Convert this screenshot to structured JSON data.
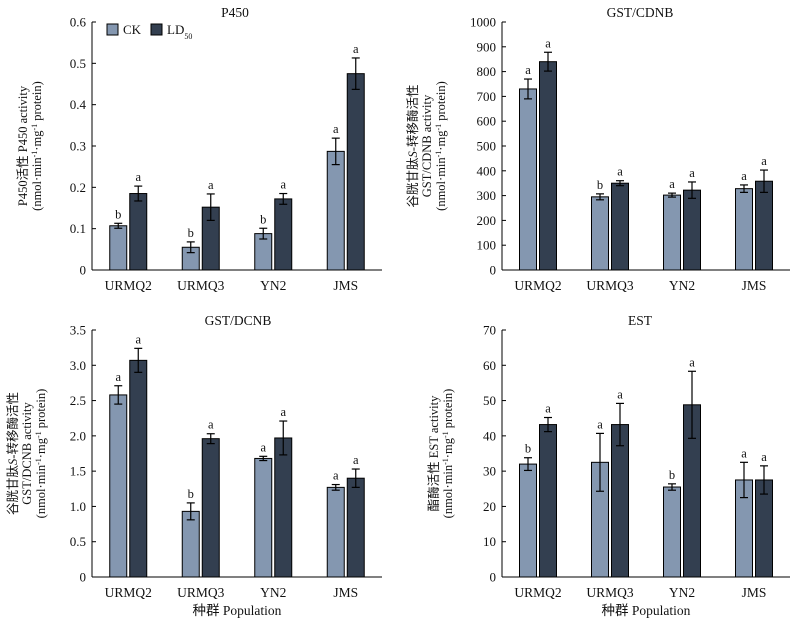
{
  "colors": {
    "ck": "#8497b0",
    "ld50": "#333f50"
  },
  "legend": {
    "ck": "CK",
    "ld_main": "LD",
    "ld_sub": "50"
  },
  "shared_xlabel": "种群 Population",
  "chart_data": [
    {
      "type": "bar",
      "title": "P450",
      "ylabel_lines": [
        [
          {
            "t": "P450活性 P450 activity"
          }
        ],
        [
          {
            "t": "(nmol·min"
          },
          {
            "t": "-1",
            "sup": true
          },
          {
            "t": "·mg"
          },
          {
            "t": "-1",
            "sup": true
          },
          {
            "t": " protein)"
          }
        ]
      ],
      "ylim": [
        0,
        0.6
      ],
      "yticks": [
        0,
        0.1,
        0.2,
        0.3,
        0.4,
        0.5,
        0.6
      ],
      "yticklabels": [
        "0",
        "0.1",
        "0.2",
        "0.3",
        "0.4",
        "0.5",
        "0.6"
      ],
      "categories": [
        "URMQ2",
        "URMQ3",
        "YN2",
        "JMS"
      ],
      "series": [
        {
          "name": "CK",
          "values": [
            0.107,
            0.055,
            0.088,
            0.287
          ],
          "errors": [
            0.006,
            0.013,
            0.013,
            0.032
          ],
          "letters": [
            "b",
            "b",
            "b",
            "a"
          ]
        },
        {
          "name": "LD50",
          "values": [
            0.185,
            0.152,
            0.172,
            0.475
          ],
          "errors": [
            0.018,
            0.032,
            0.013,
            0.038
          ],
          "letters": [
            "a",
            "a",
            "a",
            "a"
          ]
        }
      ],
      "show_legend": true,
      "show_xlabel": false
    },
    {
      "type": "bar",
      "title": "GST/CDNB",
      "ylabel_lines": [
        [
          {
            "t": "谷胱甘肽"
          },
          {
            "t": "S",
            "it": true
          },
          {
            "t": "-转移酶活性"
          }
        ],
        [
          {
            "t": "GST/CDNB activity"
          }
        ],
        [
          {
            "t": "(nmol·min"
          },
          {
            "t": "-1",
            "sup": true
          },
          {
            "t": "·mg"
          },
          {
            "t": "-1",
            "sup": true
          },
          {
            "t": " protein)"
          }
        ]
      ],
      "ylim": [
        0,
        1000
      ],
      "yticks": [
        0,
        100,
        200,
        300,
        400,
        500,
        600,
        700,
        800,
        900,
        1000
      ],
      "yticklabels": [
        "0",
        "100",
        "200",
        "300",
        "400",
        "500",
        "600",
        "700",
        "800",
        "900",
        "1000"
      ],
      "categories": [
        "URMQ2",
        "URMQ3",
        "YN2",
        "JMS"
      ],
      "series": [
        {
          "name": "CK",
          "values": [
            730,
            295,
            302,
            328
          ],
          "errors": [
            40,
            12,
            8,
            15
          ],
          "letters": [
            "a",
            "b",
            "a",
            "a"
          ]
        },
        {
          "name": "LD50",
          "values": [
            840,
            350,
            322,
            358
          ],
          "errors": [
            38,
            10,
            33,
            45
          ],
          "letters": [
            "a",
            "a",
            "a",
            "a"
          ]
        }
      ],
      "show_legend": false,
      "show_xlabel": false
    },
    {
      "type": "bar",
      "title": "GST/DCNB",
      "ylabel_lines": [
        [
          {
            "t": "谷胱甘肽"
          },
          {
            "t": "S",
            "it": true
          },
          {
            "t": "-转移酶活性"
          }
        ],
        [
          {
            "t": "GST/DCNB activity"
          }
        ],
        [
          {
            "t": "(nmol·min"
          },
          {
            "t": "-1",
            "sup": true
          },
          {
            "t": "·mg"
          },
          {
            "t": "-1",
            "sup": true
          },
          {
            "t": " protein)"
          }
        ]
      ],
      "ylim": [
        0,
        3.5
      ],
      "yticks": [
        0,
        0.5,
        1.0,
        1.5,
        2.0,
        2.5,
        3.0,
        3.5
      ],
      "yticklabels": [
        "0",
        "0.5",
        "1.0",
        "1.5",
        "2.0",
        "2.5",
        "3.0",
        "3.5"
      ],
      "categories": [
        "URMQ2",
        "URMQ3",
        "YN2",
        "JMS"
      ],
      "series": [
        {
          "name": "CK",
          "values": [
            2.58,
            0.93,
            1.68,
            1.27
          ],
          "errors": [
            0.13,
            0.12,
            0.03,
            0.04
          ],
          "letters": [
            "a",
            "b",
            "a",
            "a"
          ]
        },
        {
          "name": "LD50",
          "values": [
            3.07,
            1.96,
            1.97,
            1.4
          ],
          "errors": [
            0.17,
            0.07,
            0.24,
            0.13
          ],
          "letters": [
            "a",
            "a",
            "a",
            "a"
          ]
        }
      ],
      "show_legend": false,
      "show_xlabel": true
    },
    {
      "type": "bar",
      "title": "EST",
      "ylabel_lines": [
        [
          {
            "t": "酯酶活性 EST activity"
          }
        ],
        [
          {
            "t": "(nmol·min"
          },
          {
            "t": "-1",
            "sup": true
          },
          {
            "t": "·mg"
          },
          {
            "t": "-1",
            "sup": true
          },
          {
            "t": " protein)"
          }
        ]
      ],
      "ylim": [
        0,
        70
      ],
      "yticks": [
        0,
        10,
        20,
        30,
        40,
        50,
        60,
        70
      ],
      "yticklabels": [
        "0",
        "10",
        "20",
        "30",
        "40",
        "50",
        "60",
        "70"
      ],
      "categories": [
        "URMQ2",
        "URMQ3",
        "YN2",
        "JMS"
      ],
      "series": [
        {
          "name": "CK",
          "values": [
            32,
            32.5,
            25.5,
            27.5
          ],
          "errors": [
            1.8,
            8.2,
            0.9,
            5.0
          ],
          "letters": [
            "b",
            "a",
            "b",
            "a"
          ]
        },
        {
          "name": "LD50",
          "values": [
            43.2,
            43.2,
            48.8,
            27.5
          ],
          "errors": [
            2.0,
            6.0,
            9.5,
            4.0
          ],
          "letters": [
            "a",
            "a",
            "a",
            "a"
          ]
        }
      ],
      "show_legend": false,
      "show_xlabel": true
    }
  ]
}
